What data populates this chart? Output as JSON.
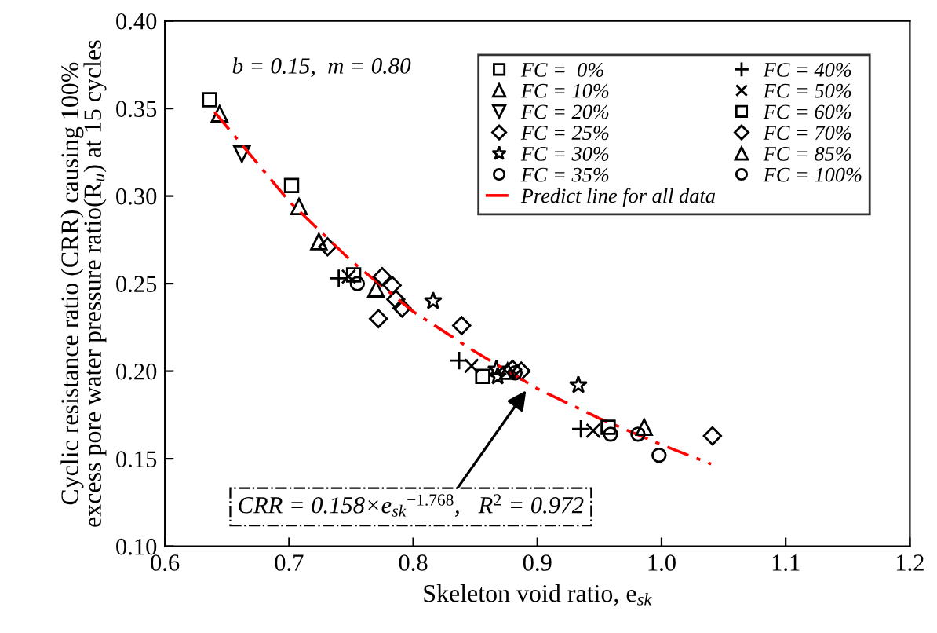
{
  "chart_data": {
    "type": "scatter",
    "xlabel": "Skeleton void ratio, e$_{sk}$",
    "ylabel": "Cyclic resistance ratio (CRR) causing 100%\nexcess pore water pressure ratio(R$_{u}$) at 15 cycles",
    "xlim": [
      0.6,
      1.2
    ],
    "xticks": [
      0.6,
      0.7,
      0.8,
      0.9,
      {
        "value": 1.0,
        "label": "1.0"
      },
      1.1,
      1.2
    ],
    "ylim": [
      0.1,
      0.4
    ],
    "yticks": [
      {
        "value": 0.1,
        "label": "0.10"
      },
      0.15,
      {
        "value": 0.2,
        "label": "0.20"
      },
      0.25,
      {
        "value": 0.3,
        "label": "0.30"
      },
      0.35,
      {
        "value": 0.4,
        "label": "0.40"
      }
    ],
    "grid": false,
    "legend": "top right",
    "annotations": [
      "b = 0.15,  m = 0.80",
      {
        "text": "CRR = 0.158×e$_{sk}$$^{−1.768}$,   R$^{2}$ = 0.972",
        "x": 0.891,
        "y": 0.189
      }
    ],
    "series": [
      {
        "name": "FC =  0%",
        "color": "#000000",
        "marker": "square",
        "x": [
          0.636,
          0.702
        ],
        "values": [
          0.355,
          0.306
        ]
      },
      {
        "name": "FC = 10%",
        "color": "#000000",
        "marker": "triangle",
        "x": [
          0.644,
          0.708,
          0.724,
          0.77
        ],
        "values": [
          0.347,
          0.294,
          0.274,
          0.247
        ]
      },
      {
        "name": "FC = 20%",
        "color": "#000000",
        "marker": "triangle_down",
        "x": [
          0.662
        ],
        "values": [
          0.324
        ]
      },
      {
        "name": "FC = 25%",
        "color": "#000000",
        "marker": "diamond",
        "x": [
          0.731,
          0.783,
          0.786,
          0.791,
          0.772,
          0.839,
          0.887
        ],
        "values": [
          0.271,
          0.249,
          0.241,
          0.236,
          0.23,
          0.226,
          0.2
        ]
      },
      {
        "name": "FC = 30%",
        "color": "#000000",
        "marker": "star",
        "x": [
          0.816,
          0.867,
          0.868,
          0.933
        ],
        "values": [
          0.24,
          0.201,
          0.197,
          0.192
        ]
      },
      {
        "name": "FC = 35%",
        "color": "#000000",
        "marker": "circle",
        "x": [
          0.755,
          0.959,
          0.998
        ],
        "values": [
          0.25,
          0.164,
          0.152
        ]
      },
      {
        "name": "Predict line for all data",
        "type": "line",
        "color": "#ff0000",
        "line_style": "dashdot",
        "marker": "none",
        "x": [
          0.64,
          0.7,
          0.75,
          0.8,
          0.85,
          0.9,
          0.95,
          1.0,
          1.04
        ],
        "values": [
          0.348,
          0.297,
          0.263,
          0.234,
          0.211,
          0.19,
          0.173,
          0.158,
          0.147
        ]
      },
      {
        "name": "FC = 40%",
        "color": "#000000",
        "marker": "plus",
        "x": [
          0.74,
          0.837,
          0.935
        ],
        "values": [
          0.253,
          0.206,
          0.167
        ]
      },
      {
        "name": "FC = 50%",
        "color": "#000000",
        "marker": "cross",
        "x": [
          0.748,
          0.847,
          0.945
        ],
        "values": [
          0.254,
          0.203,
          0.166
        ]
      },
      {
        "name": "FC = 60%",
        "color": "#000000",
        "marker": "square",
        "x": [
          0.752,
          0.856,
          0.957
        ],
        "values": [
          0.255,
          0.197,
          0.168
        ]
      },
      {
        "name": "FC = 70%",
        "color": "#000000",
        "marker": "diamond",
        "x": [
          0.775,
          0.88,
          1.041
        ],
        "values": [
          0.254,
          0.201,
          0.163
        ]
      },
      {
        "name": "FC = 85%",
        "color": "#000000",
        "marker": "triangle",
        "x": [
          0.876,
          0.986
        ],
        "values": [
          0.2,
          0.168
        ]
      },
      {
        "name": "FC = 100%",
        "color": "#000000",
        "marker": "circle",
        "x": [
          0.882,
          0.981
        ],
        "values": [
          0.199,
          0.164
        ]
      }
    ]
  }
}
